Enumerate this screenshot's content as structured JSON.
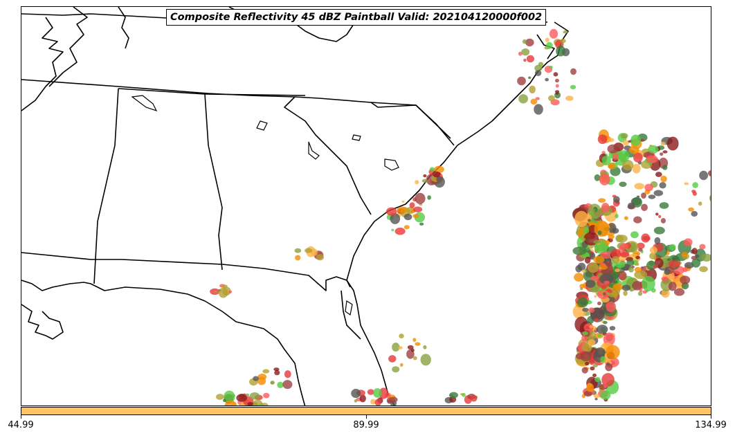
{
  "title": "Composite Reflectivity 45 dBZ Paintball Valid: 202104120000f002",
  "colorbar": {
    "color": "#ffc464",
    "ticks": [
      "44.99",
      "89.99",
      "134.99"
    ]
  },
  "colors": {
    "coastline": "#000000",
    "paintball": [
      "#f58c00",
      "#ffb347",
      "#e63a3a",
      "#ff5a5a",
      "#8b1a1a",
      "#a04040",
      "#3a7a3a",
      "#55cc44",
      "#88a040",
      "#b0a030",
      "#555555"
    ]
  }
}
